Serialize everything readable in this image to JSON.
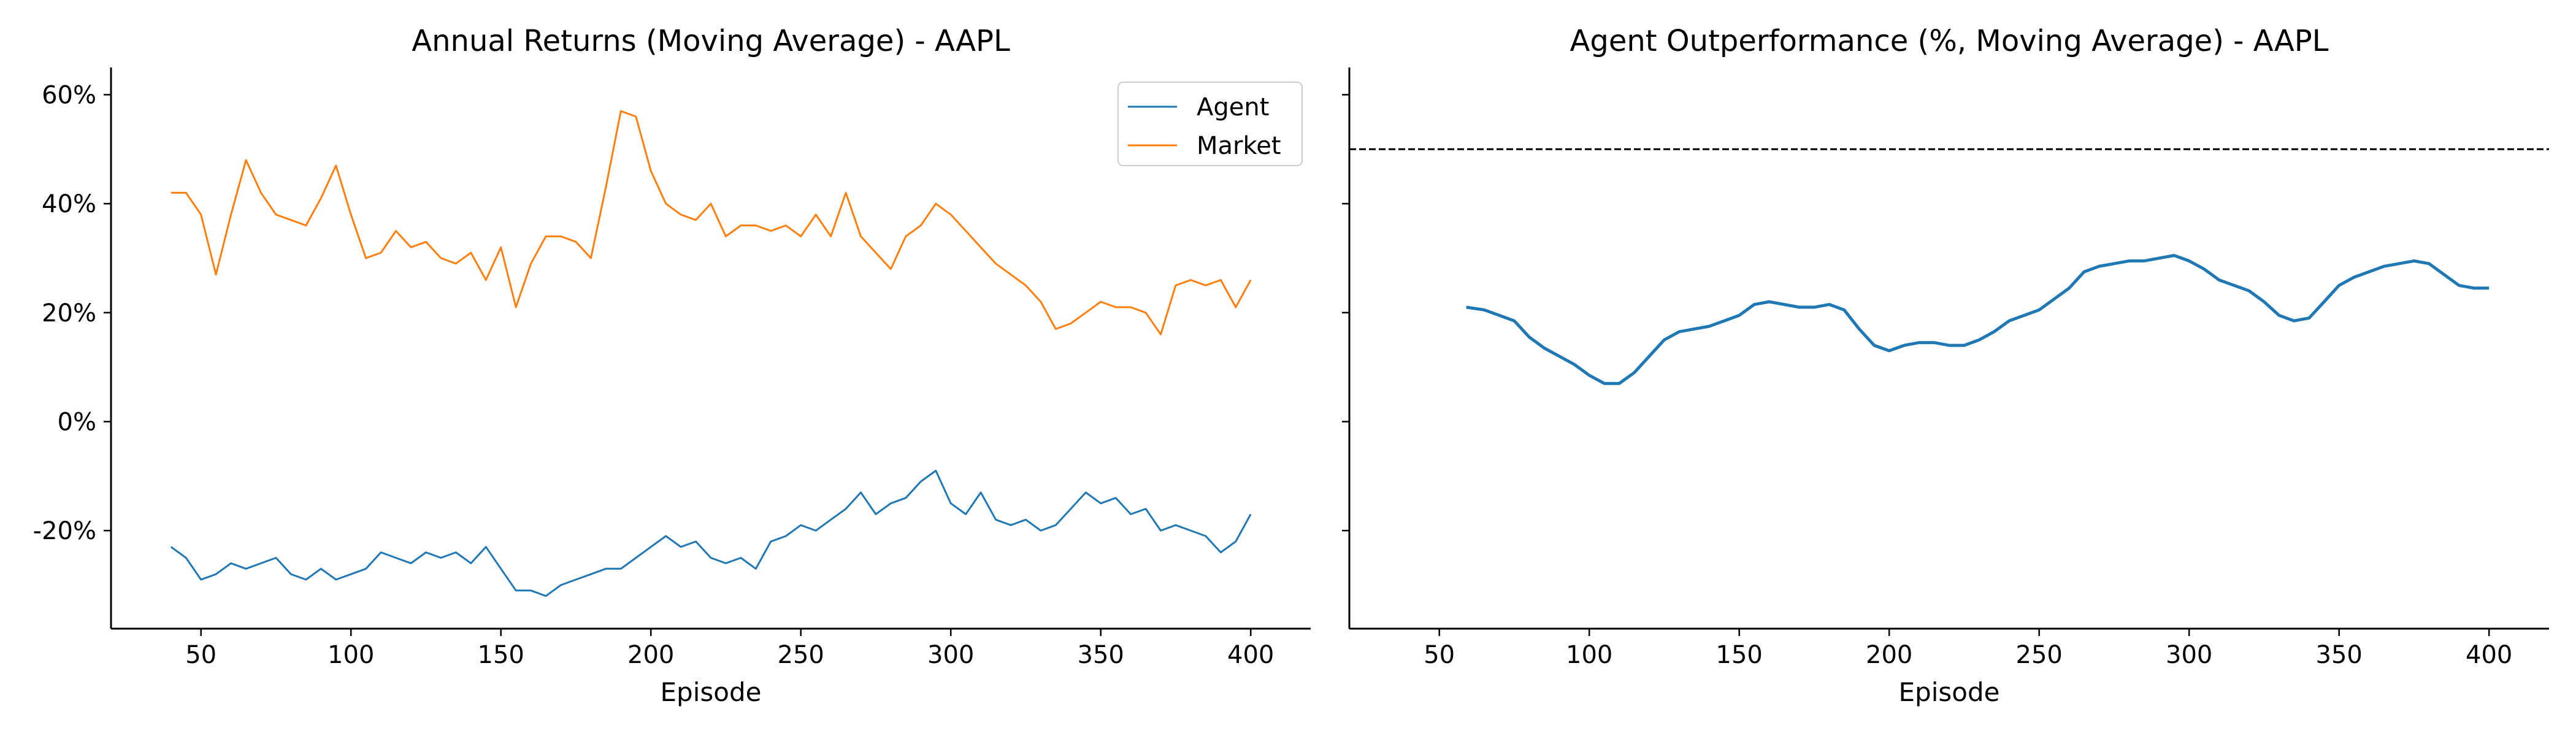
{
  "chart_data": [
    {
      "type": "line",
      "title": "Annual Returns (Moving Average) - AAPL",
      "xlabel": "Episode",
      "ylabel": "",
      "xlim": [
        20,
        420
      ],
      "ylim": [
        -38,
        65
      ],
      "xticks": [
        50,
        100,
        150,
        200,
        250,
        300,
        350,
        400
      ],
      "yticks": [
        -20,
        0,
        20,
        40,
        60
      ],
      "ytick_labels": [
        "-20%",
        "0%",
        "20%",
        "40%",
        "60%"
      ],
      "legend_position": "top-right",
      "series": [
        {
          "name": "Agent",
          "color": "#1f77b4",
          "x": [
            40,
            45,
            50,
            55,
            60,
            65,
            70,
            75,
            80,
            85,
            90,
            95,
            100,
            105,
            110,
            115,
            120,
            125,
            130,
            135,
            140,
            145,
            150,
            155,
            160,
            165,
            170,
            175,
            180,
            185,
            190,
            195,
            200,
            205,
            210,
            215,
            220,
            225,
            230,
            235,
            240,
            245,
            250,
            255,
            260,
            265,
            270,
            275,
            280,
            285,
            290,
            295,
            300,
            305,
            310,
            315,
            320,
            325,
            330,
            335,
            340,
            345,
            350,
            355,
            360,
            365,
            370,
            375,
            380,
            385,
            390,
            395,
            400
          ],
          "y": [
            -23,
            -25,
            -29,
            -28,
            -26,
            -27,
            -26,
            -25,
            -28,
            -29,
            -27,
            -29,
            -28,
            -27,
            -24,
            -25,
            -26,
            -24,
            -25,
            -24,
            -26,
            -23,
            -27,
            -31,
            -31,
            -32,
            -30,
            -29,
            -28,
            -27,
            -27,
            -25,
            -23,
            -21,
            -23,
            -22,
            -25,
            -26,
            -25,
            -27,
            -22,
            -21,
            -19,
            -20,
            -18,
            -16,
            -13,
            -17,
            -15,
            -14,
            -11,
            -9,
            -15,
            -17,
            -13,
            -18,
            -19,
            -18,
            -20,
            -19,
            -16,
            -13,
            -15,
            -14,
            -17,
            -16,
            -20,
            -19,
            -20,
            -21,
            -24,
            -22,
            -17
          ]
        },
        {
          "name": "Market",
          "color": "#ff7f0e",
          "x": [
            40,
            45,
            50,
            55,
            60,
            65,
            70,
            75,
            80,
            85,
            90,
            95,
            100,
            105,
            110,
            115,
            120,
            125,
            130,
            135,
            140,
            145,
            150,
            155,
            160,
            165,
            170,
            175,
            180,
            185,
            190,
            195,
            200,
            205,
            210,
            215,
            220,
            225,
            230,
            235,
            240,
            245,
            250,
            255,
            260,
            265,
            270,
            275,
            280,
            285,
            290,
            295,
            300,
            305,
            310,
            315,
            320,
            325,
            330,
            335,
            340,
            345,
            350,
            355,
            360,
            365,
            370,
            375,
            380,
            385,
            390,
            395,
            400
          ],
          "y": [
            42,
            42,
            38,
            27,
            38,
            48,
            42,
            38,
            37,
            36,
            41,
            47,
            38,
            30,
            31,
            35,
            32,
            33,
            30,
            29,
            31,
            26,
            32,
            21,
            29,
            34,
            34,
            33,
            30,
            43,
            57,
            56,
            46,
            40,
            38,
            37,
            40,
            34,
            36,
            36,
            35,
            36,
            34,
            38,
            34,
            42,
            34,
            31,
            28,
            34,
            36,
            40,
            38,
            35,
            32,
            29,
            27,
            25,
            22,
            17,
            18,
            20,
            22,
            21,
            21,
            20,
            16,
            25,
            26,
            25,
            26,
            21,
            26
          ]
        }
      ]
    },
    {
      "type": "line",
      "title": "Agent Outperformance (%, Moving Average) - AAPL",
      "xlabel": "Episode",
      "ylabel": "",
      "xlim": [
        20,
        420
      ],
      "ylim": [
        -38,
        65
      ],
      "xticks": [
        50,
        100,
        150,
        200,
        250,
        300,
        350,
        400
      ],
      "yticks": [
        -20,
        0,
        20,
        40,
        60
      ],
      "reference_line": {
        "y": 50,
        "style": "dashed",
        "color": "#000000"
      },
      "series": [
        {
          "color": "#1f77b4",
          "x": [
            59,
            65,
            70,
            75,
            80,
            85,
            90,
            95,
            100,
            105,
            110,
            115,
            120,
            125,
            130,
            135,
            140,
            145,
            150,
            155,
            160,
            165,
            170,
            175,
            180,
            185,
            190,
            195,
            200,
            205,
            210,
            215,
            220,
            225,
            230,
            235,
            240,
            245,
            250,
            255,
            260,
            265,
            270,
            275,
            280,
            285,
            290,
            295,
            300,
            305,
            310,
            315,
            320,
            325,
            330,
            335,
            340,
            345,
            350,
            355,
            360,
            365,
            370,
            375,
            380,
            385,
            390,
            395,
            400
          ],
          "y": [
            21,
            20.5,
            19.5,
            18.5,
            15.5,
            13.5,
            12,
            10.5,
            8.5,
            7,
            7,
            9,
            12,
            15,
            16.5,
            17,
            17.5,
            18.5,
            19.5,
            21.5,
            22,
            21.5,
            21,
            21,
            21.5,
            20.5,
            17,
            14,
            13,
            14,
            14.5,
            14.5,
            14,
            14,
            15,
            16.5,
            18.5,
            19.5,
            20.5,
            22.5,
            24.5,
            27.5,
            28.5,
            29,
            29.5,
            29.5,
            30,
            30.5,
            29.5,
            28,
            26,
            25,
            24,
            22,
            19.5,
            18.5,
            19,
            22,
            25,
            26.5,
            27.5,
            28.5,
            29,
            29.5,
            29,
            27,
            25,
            24.5,
            24.5
          ]
        }
      ]
    }
  ]
}
